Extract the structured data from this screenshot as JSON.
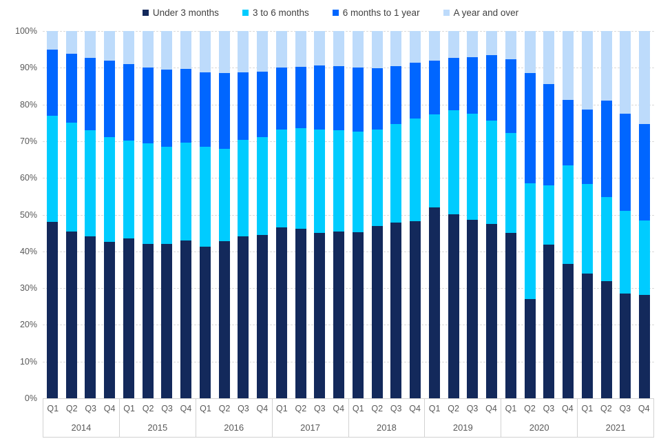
{
  "legend": {
    "items": [
      {
        "label": "Under 3 months",
        "color": "#13295B"
      },
      {
        "label": "3 to 6 months",
        "color": "#00CCFF"
      },
      {
        "label": "6 months to 1 year",
        "color": "#0066FF"
      },
      {
        "label": "A year and over",
        "color": "#BDDBFB"
      }
    ]
  },
  "y_axis": {
    "tick_labels": [
      "100%",
      "90%",
      "80%",
      "70%",
      "60%",
      "50%",
      "40%",
      "30%",
      "20%",
      "10%",
      "0%"
    ]
  },
  "x_axis": {
    "years": [
      {
        "label": "2014",
        "quarters": [
          "Q1",
          "Q2",
          "Q3",
          "Q4"
        ]
      },
      {
        "label": "2015",
        "quarters": [
          "Q1",
          "Q2",
          "Q3",
          "Q4"
        ]
      },
      {
        "label": "2016",
        "quarters": [
          "Q1",
          "Q2",
          "Q3",
          "Q4"
        ]
      },
      {
        "label": "2017",
        "quarters": [
          "Q1",
          "Q2",
          "Q3",
          "Q4"
        ]
      },
      {
        "label": "2018",
        "quarters": [
          "Q1",
          "Q2",
          "Q3",
          "Q4"
        ]
      },
      {
        "label": "2019",
        "quarters": [
          "Q1",
          "Q2",
          "Q3",
          "Q4"
        ]
      },
      {
        "label": "2020",
        "quarters": [
          "Q1",
          "Q2",
          "Q3",
          "Q4"
        ]
      },
      {
        "label": "2021",
        "quarters": [
          "Q1",
          "Q2",
          "Q3",
          "Q4"
        ]
      }
    ]
  },
  "chart_data": {
    "type": "bar",
    "stacked": true,
    "value_format": "percent_of_total",
    "x_categories": [
      "2014 Q1",
      "2014 Q2",
      "2014 Q3",
      "2014 Q4",
      "2015 Q1",
      "2015 Q2",
      "2015 Q3",
      "2015 Q4",
      "2016 Q1",
      "2016 Q2",
      "2016 Q3",
      "2016 Q4",
      "2017 Q1",
      "2017 Q2",
      "2017 Q3",
      "2017 Q4",
      "2018 Q1",
      "2018 Q2",
      "2018 Q3",
      "2018 Q4",
      "2019 Q1",
      "2019 Q2",
      "2019 Q3",
      "2019 Q4",
      "2020 Q1",
      "2020 Q2",
      "2020 Q3",
      "2020 Q4",
      "2021 Q1",
      "2021 Q2",
      "2021 Q3",
      "2021 Q4"
    ],
    "series": [
      {
        "name": "Under 3 months",
        "color": "#13295B",
        "values": [
          48,
          45.4,
          44,
          42.6,
          43.6,
          42,
          42.1,
          43,
          41.2,
          42.8,
          44,
          44.4,
          46.6,
          46.1,
          45,
          45.4,
          45.2,
          47,
          47.8,
          48.3,
          52,
          50.1,
          48.6,
          47.5,
          45,
          27,
          41.9,
          36.5,
          34,
          31.9,
          28.6,
          28.2
        ]
      },
      {
        "name": "3 to 6 months",
        "color": "#00CCFF",
        "values": [
          29,
          29.6,
          29,
          28.5,
          26.6,
          27.5,
          26.4,
          26.7,
          27.2,
          25.2,
          26.3,
          26.8,
          26.6,
          27.5,
          28.2,
          27.6,
          27.5,
          26.2,
          26.8,
          27.8,
          25.3,
          28.4,
          28.8,
          28.1,
          27.3,
          31.5,
          16.1,
          26.9,
          24.3,
          22.8,
          22.4,
          20.2
        ]
      },
      {
        "name": "6 months to 1 year",
        "color": "#0066FF",
        "values": [
          18,
          18.8,
          19.7,
          20.9,
          20.8,
          20.5,
          21,
          20,
          20.4,
          20.6,
          18.4,
          17.8,
          16.9,
          16.6,
          17.5,
          17.4,
          17.3,
          16.7,
          15.9,
          15.3,
          14.7,
          14.1,
          15.4,
          17.8,
          20.1,
          30.1,
          27.5,
          17.8,
          20.4,
          26.3,
          26.5,
          26.3
        ]
      },
      {
        "name": "A year and over",
        "color": "#BDDBFB",
        "values": [
          5,
          6.2,
          7.3,
          8,
          9,
          10,
          10.5,
          10.3,
          11.2,
          11.4,
          11.3,
          11,
          9.9,
          9.8,
          9.3,
          9.6,
          10,
          10.1,
          9.5,
          8.6,
          8,
          7.4,
          7.2,
          6.6,
          7.6,
          11.4,
          14.5,
          18.8,
          21.3,
          19,
          22.5,
          25.3
        ]
      }
    ],
    "ylim": [
      0,
      100
    ],
    "ytick_labels_bottom_to_top": [
      "0%",
      "10%",
      "20%",
      "30%",
      "40%",
      "50%",
      "60%",
      "70%",
      "80%",
      "90%",
      "100%"
    ],
    "grid": "horizontal-dashed",
    "legend_position": "top-center"
  },
  "style": {
    "gridline_color": "#D9D9D9",
    "axis_box_color": "#D2D2D2",
    "tick_text_color": "#595959",
    "legend_text_color": "#404040",
    "background": "#FFFFFF"
  }
}
